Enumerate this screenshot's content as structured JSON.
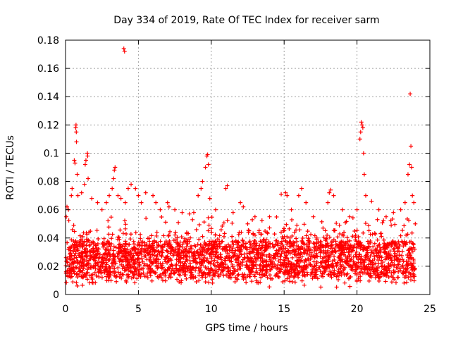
{
  "chart_data": {
    "type": "scatter",
    "title": "Day 334 of 2019, Rate Of TEC Index for receiver sarm",
    "xlabel": "GPS time / hours",
    "ylabel": "ROTI / TECUs",
    "xlim": [
      0,
      25
    ],
    "ylim": [
      0,
      0.18
    ],
    "x_ticks": [
      0,
      5,
      10,
      15,
      20,
      25
    ],
    "x_tick_labels": [
      "0",
      "5",
      "10",
      "15",
      "20",
      "25"
    ],
    "y_ticks": [
      0,
      0.02,
      0.04,
      0.06,
      0.08,
      0.1,
      0.12,
      0.14,
      0.16,
      0.18
    ],
    "y_tick_labels": [
      "0",
      "0.02",
      "0.04",
      "0.06",
      "0.08",
      "0.1",
      "0.12",
      "0.14",
      "0.16",
      "0.18"
    ],
    "grid": true,
    "legend": "none",
    "marker": "+",
    "marker_color": "#ff0000",
    "data_extent_x": [
      0,
      24
    ],
    "series": [
      {
        "name": "ROTI",
        "points_note": "dense band of points mostly between 0.01 and 0.05 across 0-24 h",
        "points": [
          [
            0.05,
            0.055
          ],
          [
            0.1,
            0.062
          ],
          [
            0.2,
            0.06
          ],
          [
            0.4,
            0.07
          ],
          [
            0.45,
            0.075
          ],
          [
            0.6,
            0.095
          ],
          [
            0.65,
            0.093
          ],
          [
            0.7,
            0.118
          ],
          [
            0.72,
            0.12
          ],
          [
            0.74,
            0.115
          ],
          [
            0.75,
            0.108
          ],
          [
            0.8,
            0.085
          ],
          [
            0.85,
            0.07
          ],
          [
            1.1,
            0.072
          ],
          [
            1.3,
            0.078
          ],
          [
            1.35,
            0.092
          ],
          [
            1.4,
            0.095
          ],
          [
            1.5,
            0.1
          ],
          [
            1.52,
            0.098
          ],
          [
            1.55,
            0.082
          ],
          [
            1.8,
            0.068
          ],
          [
            2.2,
            0.065
          ],
          [
            2.5,
            0.06
          ],
          [
            2.8,
            0.065
          ],
          [
            3.0,
            0.07
          ],
          [
            3.2,
            0.075
          ],
          [
            3.3,
            0.082
          ],
          [
            3.35,
            0.088
          ],
          [
            3.4,
            0.09
          ],
          [
            3.6,
            0.07
          ],
          [
            3.8,
            0.068
          ],
          [
            4.0,
            0.174
          ],
          [
            4.05,
            0.172
          ],
          [
            4.1,
            0.065
          ],
          [
            4.3,
            0.075
          ],
          [
            4.5,
            0.078
          ],
          [
            4.8,
            0.075
          ],
          [
            5.0,
            0.07
          ],
          [
            5.2,
            0.065
          ],
          [
            5.5,
            0.072
          ],
          [
            6.0,
            0.07
          ],
          [
            6.2,
            0.065
          ],
          [
            6.5,
            0.06
          ],
          [
            7.0,
            0.065
          ],
          [
            7.1,
            0.062
          ],
          [
            7.5,
            0.06
          ],
          [
            8.0,
            0.058
          ],
          [
            8.5,
            0.057
          ],
          [
            8.8,
            0.058
          ],
          [
            9.1,
            0.07
          ],
          [
            9.3,
            0.075
          ],
          [
            9.4,
            0.08
          ],
          [
            9.6,
            0.09
          ],
          [
            9.7,
            0.098
          ],
          [
            9.75,
            0.099
          ],
          [
            9.8,
            0.092
          ],
          [
            9.9,
            0.068
          ],
          [
            10.3,
            0.06
          ],
          [
            11.0,
            0.075
          ],
          [
            11.1,
            0.077
          ],
          [
            11.5,
            0.058
          ],
          [
            12.0,
            0.065
          ],
          [
            12.2,
            0.062
          ],
          [
            12.5,
            0.05
          ],
          [
            13.0,
            0.055
          ],
          [
            14.0,
            0.055
          ],
          [
            14.8,
            0.071
          ],
          [
            15.1,
            0.072
          ],
          [
            15.2,
            0.07
          ],
          [
            15.5,
            0.06
          ],
          [
            16.0,
            0.07
          ],
          [
            16.2,
            0.075
          ],
          [
            16.5,
            0.065
          ],
          [
            17.0,
            0.055
          ],
          [
            18.0,
            0.065
          ],
          [
            18.1,
            0.072
          ],
          [
            18.2,
            0.074
          ],
          [
            18.4,
            0.07
          ],
          [
            19.0,
            0.06
          ],
          [
            19.5,
            0.055
          ],
          [
            20.0,
            0.06
          ],
          [
            20.2,
            0.11
          ],
          [
            20.25,
            0.115
          ],
          [
            20.3,
            0.122
          ],
          [
            20.35,
            0.12
          ],
          [
            20.4,
            0.118
          ],
          [
            20.45,
            0.1
          ],
          [
            20.5,
            0.085
          ],
          [
            20.6,
            0.07
          ],
          [
            21.0,
            0.066
          ],
          [
            21.5,
            0.06
          ],
          [
            22.0,
            0.055
          ],
          [
            22.5,
            0.058
          ],
          [
            23.0,
            0.06
          ],
          [
            23.3,
            0.065
          ],
          [
            23.5,
            0.085
          ],
          [
            23.6,
            0.092
          ],
          [
            23.65,
            0.142
          ],
          [
            23.7,
            0.105
          ],
          [
            23.75,
            0.09
          ],
          [
            23.8,
            0.07
          ],
          [
            23.9,
            0.065
          ],
          [
            24.0,
            0.05
          ]
        ]
      }
    ]
  }
}
